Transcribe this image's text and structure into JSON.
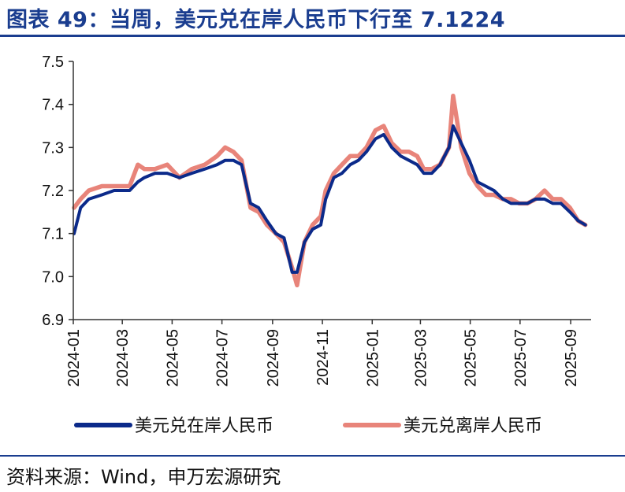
{
  "header": {
    "title": "图表 49：当周，美元兑在岸人民币下行至 7.1224"
  },
  "footer": {
    "source": "资料来源：Wind，申万宏源研究"
  },
  "chart_data": {
    "type": "line",
    "x_ticks": [
      "2024-01",
      "2024-03",
      "2024-05",
      "2024-07",
      "2024-09",
      "2024-11",
      "2025-01",
      "2025-03",
      "2025-05",
      "2025-07",
      "2025-09"
    ],
    "y_ticks": [
      "6.9",
      "7.0",
      "7.1",
      "7.2",
      "7.3",
      "7.4",
      "7.5"
    ],
    "ylim": [
      6.9,
      7.5
    ],
    "xlim": [
      "2024-01-01",
      "2025-09-26"
    ],
    "grid": false,
    "legend_position": "bottom",
    "series": [
      {
        "name": "美元兑在岸人民币",
        "color": "#0b2a8a",
        "x": [
          "2024-01-02",
          "2024-01-10",
          "2024-01-20",
          "2024-02-05",
          "2024-02-20",
          "2024-03-01",
          "2024-03-10",
          "2024-03-20",
          "2024-03-28",
          "2024-04-10",
          "2024-04-25",
          "2024-05-10",
          "2024-05-25",
          "2024-06-10",
          "2024-06-25",
          "2024-07-05",
          "2024-07-15",
          "2024-07-25",
          "2024-08-05",
          "2024-08-15",
          "2024-08-25",
          "2024-09-05",
          "2024-09-15",
          "2024-09-25",
          "2024-10-01",
          "2024-10-10",
          "2024-10-20",
          "2024-10-30",
          "2024-11-05",
          "2024-11-15",
          "2024-11-25",
          "2024-12-05",
          "2024-12-15",
          "2024-12-25",
          "2025-01-05",
          "2025-01-15",
          "2025-01-25",
          "2025-02-05",
          "2025-02-15",
          "2025-02-25",
          "2025-03-05",
          "2025-03-15",
          "2025-03-25",
          "2025-04-05",
          "2025-04-10",
          "2025-04-20",
          "2025-04-30",
          "2025-05-10",
          "2025-05-20",
          "2025-05-30",
          "2025-06-10",
          "2025-06-20",
          "2025-06-30",
          "2025-07-10",
          "2025-07-20",
          "2025-07-31",
          "2025-08-10",
          "2025-08-20",
          "2025-08-31",
          "2025-09-10",
          "2025-09-19"
        ],
        "y": [
          7.1,
          7.16,
          7.18,
          7.19,
          7.2,
          7.2,
          7.2,
          7.22,
          7.23,
          7.24,
          7.24,
          7.23,
          7.24,
          7.25,
          7.26,
          7.27,
          7.27,
          7.26,
          7.17,
          7.16,
          7.13,
          7.1,
          7.09,
          7.01,
          7.01,
          7.08,
          7.11,
          7.12,
          7.18,
          7.23,
          7.24,
          7.26,
          7.27,
          7.29,
          7.32,
          7.33,
          7.3,
          7.28,
          7.27,
          7.26,
          7.24,
          7.24,
          7.26,
          7.3,
          7.35,
          7.31,
          7.27,
          7.22,
          7.21,
          7.2,
          7.18,
          7.17,
          7.17,
          7.17,
          7.18,
          7.18,
          7.17,
          7.17,
          7.15,
          7.13,
          7.12
        ]
      },
      {
        "name": "美元兑离岸人民币",
        "color": "#e8847a",
        "x": [
          "2024-01-02",
          "2024-01-10",
          "2024-01-20",
          "2024-02-05",
          "2024-02-20",
          "2024-03-01",
          "2024-03-10",
          "2024-03-20",
          "2024-03-28",
          "2024-04-10",
          "2024-04-25",
          "2024-05-10",
          "2024-05-25",
          "2024-06-10",
          "2024-06-25",
          "2024-07-05",
          "2024-07-15",
          "2024-07-25",
          "2024-08-05",
          "2024-08-15",
          "2024-08-25",
          "2024-09-05",
          "2024-09-15",
          "2024-09-25",
          "2024-10-01",
          "2024-10-10",
          "2024-10-20",
          "2024-10-30",
          "2024-11-05",
          "2024-11-15",
          "2024-11-25",
          "2024-12-05",
          "2024-12-15",
          "2024-12-25",
          "2025-01-05",
          "2025-01-15",
          "2025-01-25",
          "2025-02-05",
          "2025-02-15",
          "2025-02-25",
          "2025-03-05",
          "2025-03-15",
          "2025-03-25",
          "2025-04-05",
          "2025-04-10",
          "2025-04-20",
          "2025-04-30",
          "2025-05-10",
          "2025-05-20",
          "2025-05-30",
          "2025-06-10",
          "2025-06-20",
          "2025-06-30",
          "2025-07-10",
          "2025-07-20",
          "2025-07-31",
          "2025-08-10",
          "2025-08-20",
          "2025-08-31",
          "2025-09-10",
          "2025-09-19"
        ],
        "y": [
          7.16,
          7.18,
          7.2,
          7.21,
          7.21,
          7.21,
          7.21,
          7.26,
          7.25,
          7.25,
          7.26,
          7.23,
          7.25,
          7.26,
          7.28,
          7.3,
          7.29,
          7.27,
          7.16,
          7.15,
          7.12,
          7.1,
          7.08,
          7.02,
          6.98,
          7.08,
          7.12,
          7.14,
          7.2,
          7.24,
          7.26,
          7.28,
          7.28,
          7.3,
          7.34,
          7.35,
          7.31,
          7.29,
          7.29,
          7.28,
          7.25,
          7.25,
          7.26,
          7.3,
          7.42,
          7.3,
          7.24,
          7.21,
          7.19,
          7.19,
          7.18,
          7.18,
          7.17,
          7.17,
          7.18,
          7.2,
          7.18,
          7.18,
          7.16,
          7.13,
          7.12
        ]
      }
    ]
  }
}
